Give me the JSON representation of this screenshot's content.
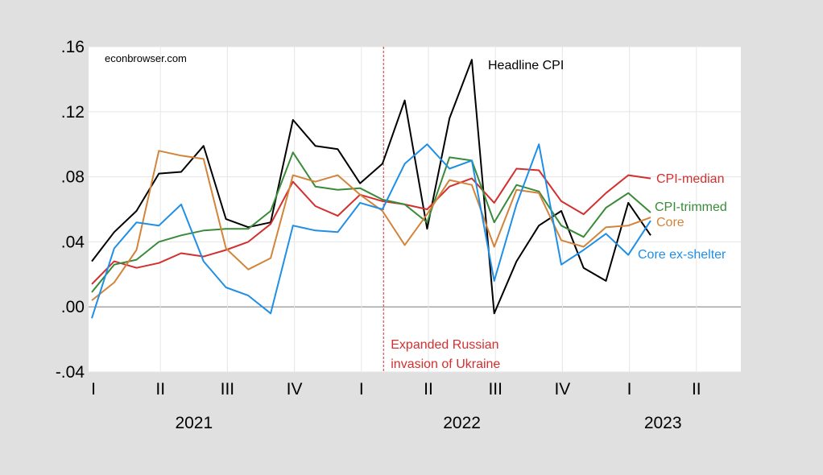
{
  "chart_data": {
    "type": "line",
    "source_label": "econbrowser.com",
    "ylim": [
      -0.04,
      0.16
    ],
    "yticks": [
      ".16",
      ".12",
      ".08",
      ".04",
      ".00",
      "-.04"
    ],
    "ytick_values": [
      0.16,
      0.12,
      0.08,
      0.04,
      0.0,
      -0.04
    ],
    "x_range": [
      0,
      24
    ],
    "quarter_labels": [
      "I",
      "II",
      "III",
      "IV",
      "I",
      "II",
      "III",
      "IV",
      "I",
      "II"
    ],
    "year_labels": [
      {
        "label": "2021",
        "x": 1.5
      },
      {
        "label": "2022",
        "x": 5.5
      },
      {
        "label": "2023",
        "x": 8.5
      }
    ],
    "annotation": {
      "x": 4.33,
      "text": [
        "Expanded Russian",
        "invasion of Ukraine"
      ],
      "color": "#d32f2f"
    },
    "grid": true,
    "series": [
      {
        "name": "Headline CPI",
        "color": "#000000",
        "values": [
          0.028,
          0.046,
          0.059,
          0.082,
          0.083,
          0.099,
          0.054,
          0.049,
          0.052,
          0.115,
          0.099,
          0.097,
          0.076,
          0.088,
          0.127,
          0.048,
          0.116,
          0.152,
          -0.004,
          0.028,
          0.05,
          0.059,
          0.024,
          0.016,
          0.064,
          0.044
        ]
      },
      {
        "name": "CPI-median",
        "color": "#d32f2f",
        "values": [
          0.014,
          0.028,
          0.024,
          0.027,
          0.033,
          0.031,
          0.035,
          0.04,
          0.051,
          0.077,
          0.062,
          0.056,
          0.069,
          0.065,
          0.063,
          0.06,
          0.074,
          0.079,
          0.064,
          0.085,
          0.084,
          0.065,
          0.057,
          0.07,
          0.081,
          0.079
        ]
      },
      {
        "name": "CPI-trimmed",
        "color": "#3a8a3a",
        "values": [
          0.009,
          0.026,
          0.029,
          0.04,
          0.044,
          0.047,
          0.048,
          0.048,
          0.059,
          0.095,
          0.074,
          0.072,
          0.073,
          0.066,
          0.063,
          0.052,
          0.092,
          0.09,
          0.052,
          0.075,
          0.071,
          0.05,
          0.043,
          0.061,
          0.07,
          0.058
        ]
      },
      {
        "name": "Core",
        "color": "#d2843a",
        "values": [
          0.004,
          0.015,
          0.035,
          0.096,
          0.093,
          0.091,
          0.036,
          0.023,
          0.03,
          0.081,
          0.077,
          0.081,
          0.069,
          0.059,
          0.038,
          0.057,
          0.078,
          0.075,
          0.037,
          0.072,
          0.07,
          0.041,
          0.037,
          0.049,
          0.05,
          0.055
        ]
      },
      {
        "name": "Core ex-shelter",
        "color": "#1f8fe6",
        "values": [
          -0.007,
          0.036,
          0.052,
          0.05,
          0.063,
          0.028,
          0.012,
          0.007,
          -0.004,
          0.05,
          0.047,
          0.046,
          0.064,
          0.06,
          0.088,
          0.1,
          0.085,
          0.09,
          0.016,
          0.063,
          0.1,
          0.026,
          0.035,
          0.045,
          0.032,
          0.053
        ]
      }
    ]
  }
}
